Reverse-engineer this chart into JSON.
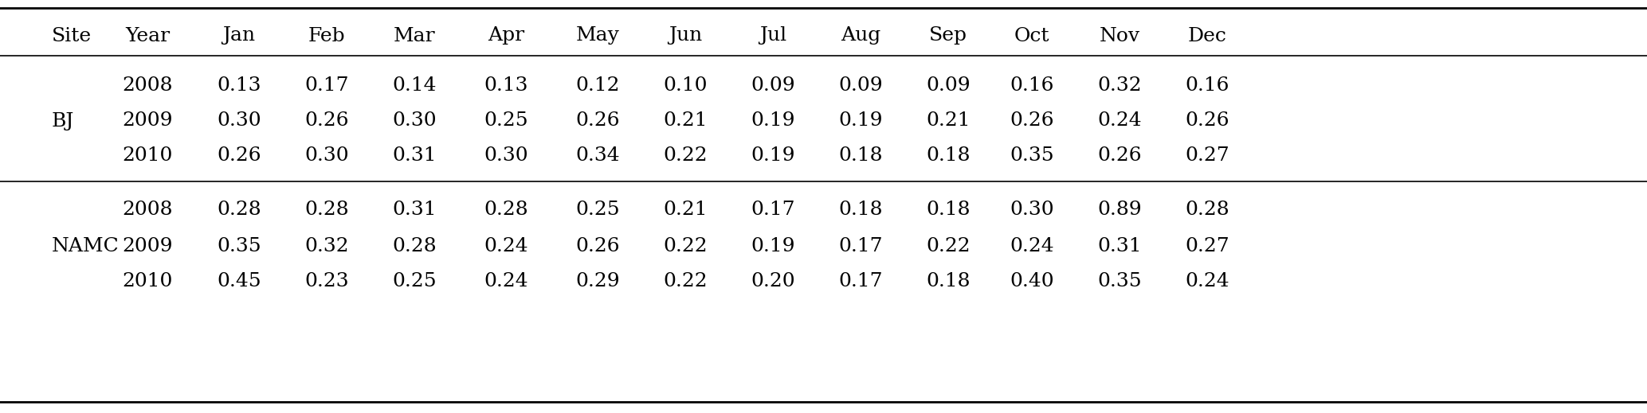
{
  "columns": [
    "Site",
    "Year",
    "Jan",
    "Feb",
    "Mar",
    "Apr",
    "May",
    "Jun",
    "Jul",
    "Aug",
    "Sep",
    "Oct",
    "Nov",
    "Dec"
  ],
  "bj_rows": [
    [
      "2008",
      "0.13",
      "0.17",
      "0.14",
      "0.13",
      "0.12",
      "0.10",
      "0.09",
      "0.09",
      "0.09",
      "0.16",
      "0.32",
      "0.16"
    ],
    [
      "2009",
      "0.30",
      "0.26",
      "0.30",
      "0.25",
      "0.26",
      "0.21",
      "0.19",
      "0.19",
      "0.21",
      "0.26",
      "0.24",
      "0.26"
    ],
    [
      "2010",
      "0.26",
      "0.30",
      "0.31",
      "0.30",
      "0.34",
      "0.22",
      "0.19",
      "0.18",
      "0.18",
      "0.35",
      "0.26",
      "0.27"
    ]
  ],
  "namc_rows": [
    [
      "2008",
      "0.28",
      "0.28",
      "0.31",
      "0.28",
      "0.25",
      "0.21",
      "0.17",
      "0.18",
      "0.18",
      "0.30",
      "0.89",
      "0.28"
    ],
    [
      "2009",
      "0.35",
      "0.32",
      "0.28",
      "0.24",
      "0.26",
      "0.22",
      "0.19",
      "0.17",
      "0.22",
      "0.24",
      "0.31",
      "0.27"
    ],
    [
      "2010",
      "0.45",
      "0.23",
      "0.25",
      "0.24",
      "0.29",
      "0.22",
      "0.20",
      "0.17",
      "0.18",
      "0.40",
      "0.35",
      "0.24"
    ]
  ],
  "bg_color": "#ffffff",
  "text_color": "#000000",
  "line_color": "#000000"
}
